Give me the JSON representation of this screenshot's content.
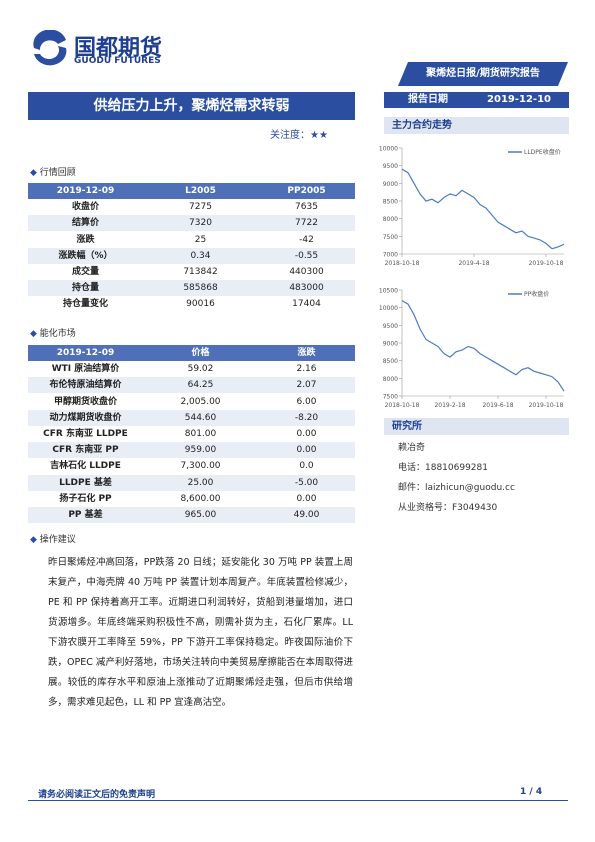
{
  "header": {
    "logo_cn": "国都期货",
    "logo_en": "GUODU FUTURES",
    "band": "聚烯烃日报/期货研究报告"
  },
  "title": "供给压力上升，聚烯烃需求转弱",
  "attention": "关注度：★★",
  "report_date": {
    "label": "报告日期",
    "value": "2019-12-10"
  },
  "sections": [
    "行情回顾",
    "能化市场",
    "操作建议"
  ],
  "table1": {
    "header": [
      "2019-12-09",
      "L2005",
      "PP2005"
    ],
    "rows": [
      [
        "收盘价",
        "7275",
        "7635"
      ],
      [
        "结算价",
        "7320",
        "7722"
      ],
      [
        "涨跌",
        "25",
        "-42"
      ],
      [
        "涨跌幅（%）",
        "0.34",
        "-0.55"
      ],
      [
        "成交量",
        "713842",
        "440300"
      ],
      [
        "持仓量",
        "585868",
        "483000"
      ],
      [
        "持仓量变化",
        "90016",
        "17404"
      ]
    ]
  },
  "table2": {
    "header": [
      "2019-12-09",
      "价格",
      "涨跌"
    ],
    "rows": [
      [
        "WTI 原油结算价",
        "59.02",
        "2.16"
      ],
      [
        "布伦特原油结算价",
        "64.25",
        "2.07"
      ],
      [
        "甲醇期货收盘价",
        "2,005.00",
        "6.00"
      ],
      [
        "动力煤期货收盘价",
        "544.60",
        "-8.20"
      ],
      [
        "CFR 东南亚 LLDPE",
        "801.00",
        "0.00"
      ],
      [
        "CFR 东南亚 PP",
        "959.00",
        "0.00"
      ],
      [
        "吉林石化 LLDPE",
        "7,300.00",
        "0.0"
      ],
      [
        "LLDPE 基差",
        "25.00",
        "-5.00"
      ],
      [
        "扬子石化 PP",
        "8,600.00",
        "0.00"
      ],
      [
        "PP 基差",
        "965.00",
        "49.00"
      ]
    ]
  },
  "advice": "昨日聚烯烃冲高回落，PP跌落 20 日线；延安能化 30 万吨 PP 装置上周末复产，中海壳牌 40 万吨 PP 装置计划本周复产。年底装置检修减少，PE 和 PP 保持着高开工率。近期进口利润转好，货船到港量增加，进口货源增多。年底终端采购积极性不高，刚需补货为主，石化厂累库。LL 下游农膜开工率降至 59%，PP 下游开工率保持稳定。昨夜国际油价下跌，OPEC 减产利好落地，市场关注转向中美贸易摩擦能否在本周取得进展。较低的库存水平和原油上涨推动了近期聚烯烃走强，但后市供给增多，需求难见起色，LL 和 PP 宜逢高沽空。",
  "right": {
    "chart_heading": "主力合约走势",
    "institute": "研究所",
    "analyst": "赖冶奇",
    "phone": "电话：18810699281",
    "email": "邮件：laizhicun@guodu.cc",
    "license": "从业资格号：F3049430"
  },
  "charts": [
    {
      "type": "line",
      "name": "LLDPE收盘价",
      "color": "#4a7cc9",
      "categories": [
        "2018-10-18",
        null,
        null,
        null,
        null,
        null,
        null,
        null,
        null,
        null,
        null,
        null,
        "2019-4-18",
        null,
        null,
        null,
        null,
        null,
        null,
        null,
        null,
        null,
        null,
        null,
        "2019-10-18",
        null,
        null,
        null
      ],
      "values": [
        9400,
        9300,
        9000,
        8700,
        8500,
        8550,
        8450,
        8600,
        8700,
        8650,
        8800,
        8700,
        8600,
        8400,
        8300,
        8100,
        7900,
        7800,
        7700,
        7600,
        7650,
        7500,
        7450,
        7400,
        7300,
        7150,
        7200,
        7275
      ],
      "ylim": [
        7000,
        10000
      ],
      "yticks": [
        7000,
        7500,
        8000,
        8500,
        9000,
        9500,
        10000
      ]
    },
    {
      "type": "line",
      "name": "PP收盘价",
      "color": "#4a7cc9",
      "categories": [
        "2018-10-18",
        null,
        null,
        null,
        null,
        null,
        null,
        null,
        "2019-2-18",
        null,
        null,
        null,
        null,
        null,
        null,
        null,
        "2019-6-18",
        null,
        null,
        null,
        null,
        null,
        null,
        null,
        "2019-10-18",
        null,
        null,
        null
      ],
      "values": [
        10200,
        10100,
        9800,
        9400,
        9100,
        9000,
        8900,
        8700,
        8600,
        8750,
        8800,
        8900,
        8850,
        8700,
        8600,
        8500,
        8400,
        8300,
        8200,
        8100,
        8250,
        8300,
        8200,
        8150,
        8100,
        8050,
        7900,
        7635
      ],
      "ylim": [
        7500,
        10500
      ],
      "yticks": [
        7500,
        8000,
        8500,
        9000,
        9500,
        10000,
        10500
      ]
    }
  ],
  "footer": {
    "disclaimer": "请务必阅读正文后的免责声明",
    "page": "1 / 4"
  }
}
